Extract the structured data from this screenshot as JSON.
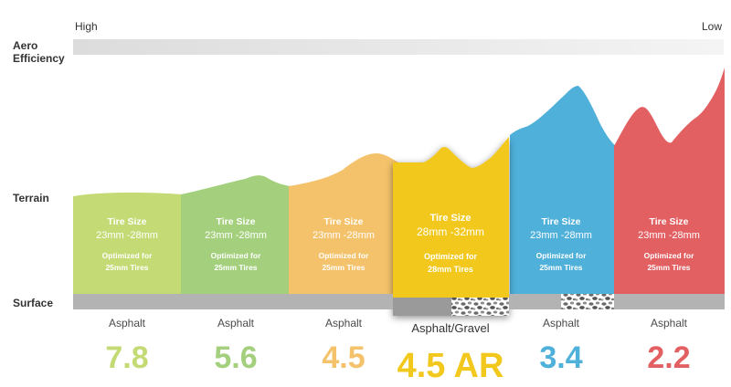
{
  "scale": {
    "high_label": "High",
    "low_label": "Low"
  },
  "row_labels": {
    "aero_line1": "Aero",
    "aero_line2": "Efficiency",
    "terrain": "Terrain",
    "surface": "Surface"
  },
  "colors": {
    "c1": "#c4da74",
    "c2": "#a4d07e",
    "c3": "#f4c26a",
    "c4": "#f2c81c",
    "c5": "#4fb0da",
    "c6": "#e25f62",
    "asphalt": "#b3b3b3"
  },
  "segments": [
    {
      "size_label": "Tire Size",
      "size_value": "23mm -28mm",
      "opt_line1": "Optimized for",
      "opt_line2": "25mm Tires",
      "surface": "Asphalt",
      "rating": "7.8",
      "color": "#c4da74"
    },
    {
      "size_label": "Tire Size",
      "size_value": "23mm -28mm",
      "opt_line1": "Optimized for",
      "opt_line2": "25mm Tires",
      "surface": "Asphalt",
      "rating": "5.6",
      "color": "#a4d07e"
    },
    {
      "size_label": "Tire Size",
      "size_value": "23mm -28mm",
      "opt_line1": "Optimized for",
      "opt_line2": "25mm Tires",
      "surface": "Asphalt",
      "rating": "4.5",
      "color": "#f4c26a"
    },
    {
      "size_label": "Tire Size",
      "size_value": "28mm -32mm",
      "opt_line1": "Optimized for",
      "opt_line2": "28mm Tires",
      "surface": "Asphalt/Gravel",
      "rating": "4.5 AR",
      "color": "#f2c81c"
    },
    {
      "size_label": "Tire Size",
      "size_value": "23mm -28mm",
      "opt_line1": "Optimized for",
      "opt_line2": "25mm Tires",
      "surface": "Asphalt",
      "rating": "3.4",
      "color": "#4fb0da"
    },
    {
      "size_label": "Tire Size",
      "size_value": "23mm -28mm",
      "opt_line1": "Optimized for",
      "opt_line2": "25mm Tires",
      "surface": "Asphalt",
      "rating": "2.2",
      "color": "#e25f62"
    }
  ]
}
